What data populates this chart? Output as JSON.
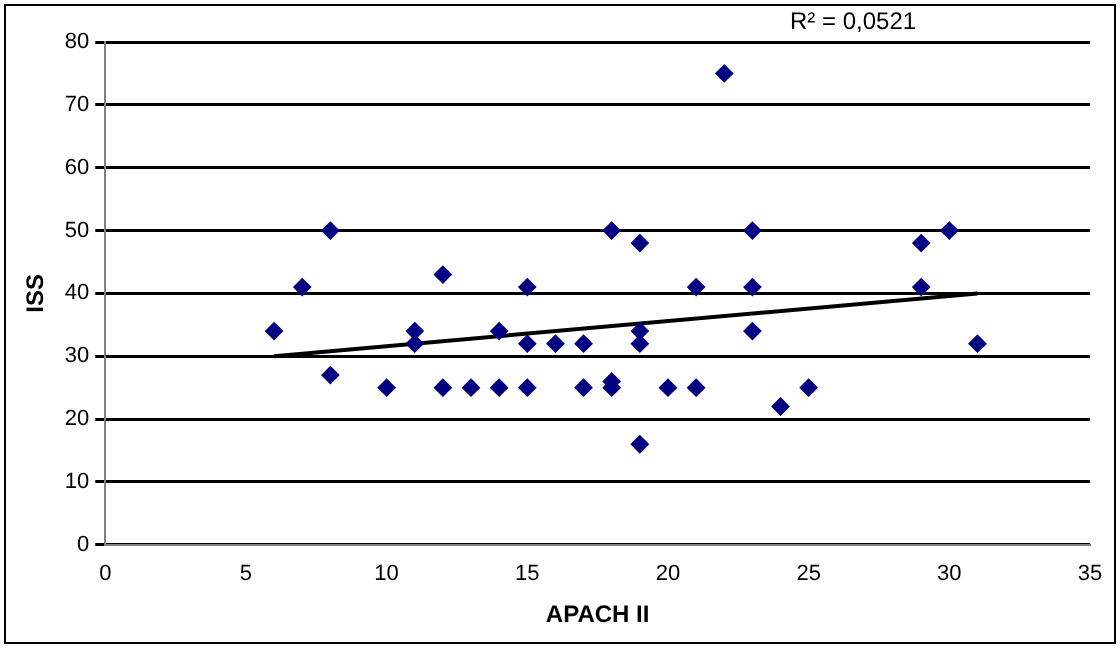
{
  "chart_data": {
    "type": "scatter",
    "xlabel": "APACH II",
    "ylabel": "ISS",
    "annotations": [
      "R² = 0,0521"
    ],
    "xlim": [
      0,
      35
    ],
    "xticks": [
      0,
      5,
      10,
      15,
      20,
      25,
      30,
      35
    ],
    "ylim": [
      0,
      80
    ],
    "yticks": [
      0,
      10,
      20,
      30,
      40,
      50,
      60,
      70,
      80
    ],
    "grid": "y",
    "legend": false,
    "marker": "diamond",
    "series": [
      {
        "color": "#000080",
        "x": [
          6,
          7,
          8,
          8,
          10,
          11,
          11,
          12,
          12,
          13,
          14,
          14,
          15,
          15,
          15,
          16,
          17,
          17,
          18,
          18,
          18,
          19,
          19,
          19,
          19,
          20,
          21,
          21,
          22,
          23,
          23,
          23,
          24,
          25,
          29,
          29,
          30,
          31
        ],
        "values": [
          34,
          41,
          50,
          27,
          25,
          34,
          32,
          43,
          25,
          25,
          34,
          25,
          41,
          32,
          25,
          32,
          32,
          25,
          50,
          26,
          25,
          48,
          34,
          32,
          16,
          25,
          41,
          25,
          75,
          50,
          41,
          34,
          22,
          25,
          48,
          41,
          50,
          32
        ]
      },
      {
        "type": "line",
        "color": "#000000",
        "line_style": "solid",
        "marker": "none",
        "x": [
          6,
          31
        ],
        "values": [
          30,
          40
        ]
      }
    ]
  }
}
